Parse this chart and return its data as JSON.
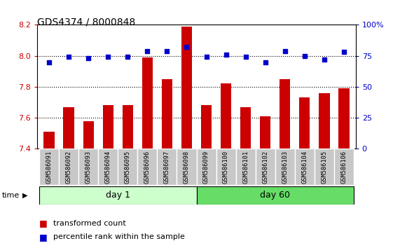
{
  "title": "GDS4374 / 8000848",
  "samples": [
    "GSM586091",
    "GSM586092",
    "GSM586093",
    "GSM586094",
    "GSM586095",
    "GSM586096",
    "GSM586097",
    "GSM586098",
    "GSM586099",
    "GSM586100",
    "GSM586101",
    "GSM586102",
    "GSM586103",
    "GSM586104",
    "GSM586105",
    "GSM586106"
  ],
  "bar_values": [
    7.51,
    7.67,
    7.58,
    7.68,
    7.68,
    7.99,
    7.85,
    8.19,
    7.68,
    7.82,
    7.67,
    7.61,
    7.85,
    7.73,
    7.76,
    7.79
  ],
  "percentile_values": [
    70,
    74,
    73,
    74,
    74,
    79,
    79,
    82,
    74,
    76,
    74,
    70,
    79,
    75,
    72,
    78
  ],
  "ylim_left": [
    7.4,
    8.2
  ],
  "ylim_right": [
    0,
    100
  ],
  "yticks_left": [
    7.4,
    7.6,
    7.8,
    8.0,
    8.2
  ],
  "yticks_right": [
    0,
    25,
    50,
    75,
    100
  ],
  "ytick_labels_right": [
    "0",
    "25",
    "50",
    "75",
    "100%"
  ],
  "bar_color": "#CC0000",
  "dot_color": "#0000CC",
  "group1_label": "day 1",
  "group2_label": "day 60",
  "group1_count": 8,
  "group2_count": 8,
  "group1_bg": "#CCFFCC",
  "group2_bg": "#66DD66",
  "sample_bg": "#C8C8C8",
  "time_label": "time",
  "legend1": "transformed count",
  "legend2": "percentile rank within the sample",
  "title_fontsize": 10,
  "axis_label_color_left": "#CC0000",
  "axis_label_color_right": "#0000CC"
}
